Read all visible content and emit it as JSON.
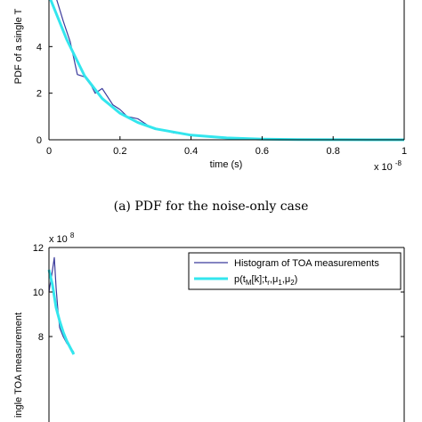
{
  "chart_data": [
    {
      "type": "line",
      "xlabel": "time (s)",
      "ylabel": "PDF of a single T",
      "x_exponent": "x 10",
      "x_exponent_power": "-8",
      "x_ticks": [
        "0",
        "0.2",
        "0.4",
        "0.6",
        "0.8",
        "1"
      ],
      "y_ticks": [
        "0",
        "2",
        "4"
      ],
      "xlim": [
        0,
        1
      ],
      "ylim": [
        0,
        6
      ],
      "grid": false,
      "caption": "(a) PDF for the noise-only case",
      "series": [
        {
          "color": "#3b3b9c",
          "x": [
            0.0,
            0.02,
            0.04,
            0.06,
            0.08,
            0.1,
            0.12,
            0.13,
            0.15,
            0.18,
            0.2,
            0.22,
            0.25,
            0.28,
            0.3,
            0.35,
            0.4,
            0.5,
            0.6,
            0.8,
            1.0
          ],
          "y": [
            7.5,
            6.1,
            5.1,
            4.2,
            2.8,
            2.7,
            2.3,
            2.0,
            2.2,
            1.5,
            1.3,
            1.0,
            0.9,
            0.6,
            0.5,
            0.3,
            0.2,
            0.06,
            0.02,
            0.0,
            0.0
          ]
        },
        {
          "color": "#33e6ee",
          "x": [
            0.0,
            0.05,
            0.1,
            0.15,
            0.2,
            0.25,
            0.3,
            0.4,
            0.5,
            0.6,
            0.7,
            0.8,
            0.9,
            1.0
          ],
          "y": [
            7.5,
            4.3,
            2.75,
            1.77,
            1.14,
            0.74,
            0.47,
            0.2,
            0.08,
            0.03,
            0.01,
            0.005,
            0.0,
            0.0
          ]
        }
      ]
    },
    {
      "type": "line",
      "ylabel": "ingle TOA measurement",
      "y_exponent": "x 10",
      "y_exponent_power": "8",
      "y_ticks": [
        "8",
        "10",
        "12"
      ],
      "ylim": [
        7.5,
        12
      ],
      "xlim": [
        0,
        1
      ],
      "legend_position": "top-right",
      "legend": [
        {
          "label": "Histogram of TOA measurements",
          "color": "#3b3b9c"
        },
        {
          "label": "p(t",
          "sub1": "M",
          "mid": "[k];t",
          "sub2": "r",
          "mid2": ",μ",
          "sub3": "1",
          "mid3": ",μ",
          "sub4": "2",
          "end": ")",
          "color": "#33e6ee"
        }
      ],
      "series": [
        {
          "color": "#3b3b9c",
          "x": [
            0.0,
            0.01,
            0.015,
            0.02,
            0.025,
            0.03,
            0.04,
            0.05,
            0.06,
            0.07
          ],
          "y": [
            10.0,
            11.0,
            11.55,
            10.2,
            9.2,
            8.4,
            8.0,
            7.7,
            7.5,
            7.3
          ]
        },
        {
          "color": "#33e6ee",
          "x": [
            0.0,
            0.01,
            0.02,
            0.03,
            0.04,
            0.05,
            0.06,
            0.07
          ],
          "y": [
            11.0,
            10.3,
            9.3,
            8.7,
            8.2,
            7.8,
            7.5,
            7.2
          ]
        }
      ]
    }
  ]
}
